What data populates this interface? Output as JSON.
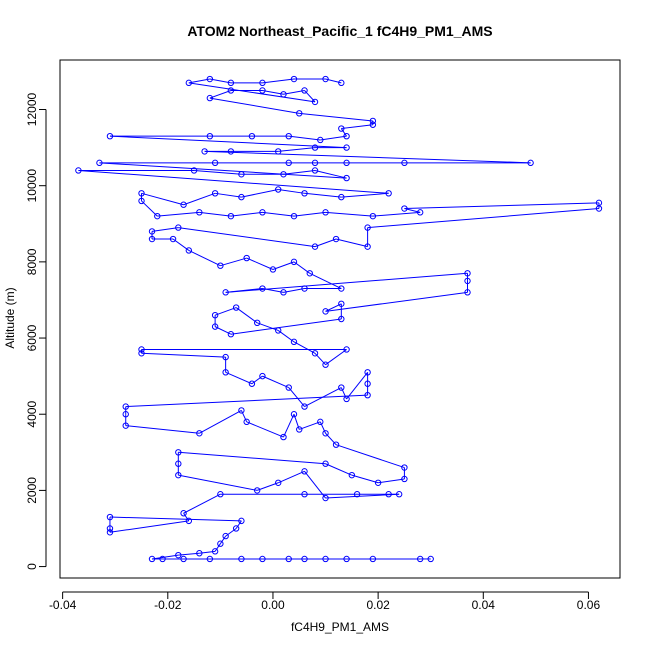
{
  "chart_data": {
    "type": "scatter",
    "title": "ATOM2 Northeast_Pacific_1 fC4H9_PM1_AMS",
    "xlabel": "fC4H9_PM1_AMS",
    "ylabel": "Altitude (m)",
    "xlim": [
      -0.0405,
      0.066
    ],
    "ylim": [
      -300,
      13300
    ],
    "x_ticks": [
      -0.04,
      -0.02,
      0.0,
      0.02,
      0.04,
      0.06
    ],
    "x_tick_labels": [
      "-0.04",
      "-0.02",
      "0.00",
      "0.02",
      "0.04",
      "0.06"
    ],
    "y_ticks": [
      0,
      2000,
      4000,
      6000,
      8000,
      10000,
      12000
    ],
    "y_tick_labels": [
      "0",
      "2000",
      "4000",
      "6000",
      "8000",
      "10000",
      "12000"
    ],
    "grid": false,
    "marker": "open-circle",
    "connect_points": true,
    "series": [
      {
        "color": "#0000ff",
        "points": [
          [
            0.03,
            200
          ],
          [
            0.028,
            200
          ],
          [
            0.019,
            200
          ],
          [
            0.014,
            200
          ],
          [
            0.01,
            200
          ],
          [
            0.006,
            200
          ],
          [
            0.003,
            200
          ],
          [
            -0.002,
            200
          ],
          [
            -0.006,
            200
          ],
          [
            -0.012,
            200
          ],
          [
            -0.017,
            200
          ],
          [
            -0.021,
            200
          ],
          [
            -0.023,
            200
          ],
          [
            -0.018,
            300
          ],
          [
            -0.014,
            350
          ],
          [
            -0.011,
            400
          ],
          [
            -0.01,
            600
          ],
          [
            -0.009,
            800
          ],
          [
            -0.007,
            1000
          ],
          [
            -0.006,
            1200
          ],
          [
            -0.031,
            1300
          ],
          [
            -0.031,
            1000
          ],
          [
            -0.031,
            900
          ],
          [
            -0.016,
            1200
          ],
          [
            -0.017,
            1400
          ],
          [
            -0.01,
            1900
          ],
          [
            0.006,
            1900
          ],
          [
            0.016,
            1900
          ],
          [
            0.022,
            1900
          ],
          [
            0.024,
            1900
          ],
          [
            0.01,
            1800
          ],
          [
            0.006,
            2500
          ],
          [
            0.001,
            2200
          ],
          [
            -0.003,
            2000
          ],
          [
            -0.018,
            2400
          ],
          [
            -0.018,
            2700
          ],
          [
            -0.018,
            3000
          ],
          [
            0.01,
            2700
          ],
          [
            0.015,
            2400
          ],
          [
            0.02,
            2200
          ],
          [
            0.025,
            2300
          ],
          [
            0.025,
            2600
          ],
          [
            0.012,
            3200
          ],
          [
            0.01,
            3500
          ],
          [
            0.009,
            3800
          ],
          [
            0.005,
            3600
          ],
          [
            0.004,
            4000
          ],
          [
            0.002,
            3400
          ],
          [
            -0.005,
            3800
          ],
          [
            -0.006,
            4100
          ],
          [
            -0.014,
            3500
          ],
          [
            -0.028,
            3700
          ],
          [
            -0.028,
            4000
          ],
          [
            -0.028,
            4200
          ],
          [
            0.018,
            4500
          ],
          [
            0.018,
            4800
          ],
          [
            0.018,
            5100
          ],
          [
            0.014,
            4400
          ],
          [
            0.013,
            4700
          ],
          [
            0.006,
            4200
          ],
          [
            0.003,
            4700
          ],
          [
            -0.002,
            5000
          ],
          [
            -0.004,
            4800
          ],
          [
            -0.009,
            5100
          ],
          [
            -0.009,
            5500
          ],
          [
            -0.025,
            5600
          ],
          [
            -0.025,
            5700
          ],
          [
            0.014,
            5700
          ],
          [
            0.01,
            5300
          ],
          [
            0.008,
            5600
          ],
          [
            0.004,
            5900
          ],
          [
            0.001,
            6200
          ],
          [
            -0.003,
            6400
          ],
          [
            -0.007,
            6800
          ],
          [
            -0.011,
            6600
          ],
          [
            -0.011,
            6300
          ],
          [
            -0.008,
            6100
          ],
          [
            0.013,
            6500
          ],
          [
            0.013,
            6900
          ],
          [
            0.01,
            6700
          ],
          [
            0.037,
            7200
          ],
          [
            0.037,
            7500
          ],
          [
            0.037,
            7700
          ],
          [
            -0.009,
            7200
          ],
          [
            -0.002,
            7300
          ],
          [
            0.002,
            7200
          ],
          [
            0.006,
            7300
          ],
          [
            0.013,
            7300
          ],
          [
            0.007,
            7700
          ],
          [
            0.004,
            8000
          ],
          [
            0.0,
            7800
          ],
          [
            -0.005,
            8100
          ],
          [
            -0.01,
            7900
          ],
          [
            -0.016,
            8300
          ],
          [
            -0.019,
            8600
          ],
          [
            -0.023,
            8600
          ],
          [
            -0.023,
            8800
          ],
          [
            -0.018,
            8900
          ],
          [
            0.008,
            8400
          ],
          [
            0.012,
            8600
          ],
          [
            0.018,
            8400
          ],
          [
            0.018,
            8900
          ],
          [
            0.062,
            9400
          ],
          [
            0.062,
            9550
          ],
          [
            0.025,
            9400
          ],
          [
            0.028,
            9300
          ],
          [
            0.019,
            9200
          ],
          [
            0.01,
            9300
          ],
          [
            0.004,
            9200
          ],
          [
            -0.002,
            9300
          ],
          [
            -0.008,
            9200
          ],
          [
            -0.014,
            9300
          ],
          [
            -0.022,
            9200
          ],
          [
            -0.025,
            9600
          ],
          [
            -0.025,
            9800
          ],
          [
            -0.017,
            9500
          ],
          [
            -0.011,
            9800
          ],
          [
            -0.006,
            9700
          ],
          [
            0.001,
            9900
          ],
          [
            0.006,
            9800
          ],
          [
            0.013,
            9700
          ],
          [
            0.022,
            9800
          ],
          [
            -0.037,
            10400
          ],
          [
            -0.015,
            10400
          ],
          [
            -0.006,
            10300
          ],
          [
            0.002,
            10300
          ],
          [
            0.008,
            10400
          ],
          [
            0.014,
            10200
          ],
          [
            -0.033,
            10600
          ],
          [
            -0.011,
            10600
          ],
          [
            0.003,
            10600
          ],
          [
            0.008,
            10600
          ],
          [
            0.014,
            10600
          ],
          [
            0.025,
            10600
          ],
          [
            0.049,
            10600
          ],
          [
            -0.013,
            10900
          ],
          [
            -0.008,
            10900
          ],
          [
            0.001,
            10900
          ],
          [
            0.008,
            11000
          ],
          [
            0.014,
            11000
          ],
          [
            -0.031,
            11300
          ],
          [
            -0.012,
            11300
          ],
          [
            -0.004,
            11300
          ],
          [
            0.003,
            11300
          ],
          [
            0.009,
            11200
          ],
          [
            0.014,
            11300
          ],
          [
            0.013,
            11500
          ],
          [
            0.019,
            11600
          ],
          [
            0.019,
            11700
          ],
          [
            0.005,
            11900
          ],
          [
            -0.012,
            12300
          ],
          [
            -0.008,
            12500
          ],
          [
            -0.002,
            12500
          ],
          [
            0.002,
            12400
          ],
          [
            0.006,
            12500
          ],
          [
            0.008,
            12200
          ],
          [
            -0.016,
            12700
          ],
          [
            -0.012,
            12800
          ],
          [
            -0.008,
            12700
          ],
          [
            -0.002,
            12700
          ],
          [
            0.004,
            12800
          ],
          [
            0.01,
            12800
          ],
          [
            0.013,
            12700
          ]
        ]
      }
    ]
  }
}
